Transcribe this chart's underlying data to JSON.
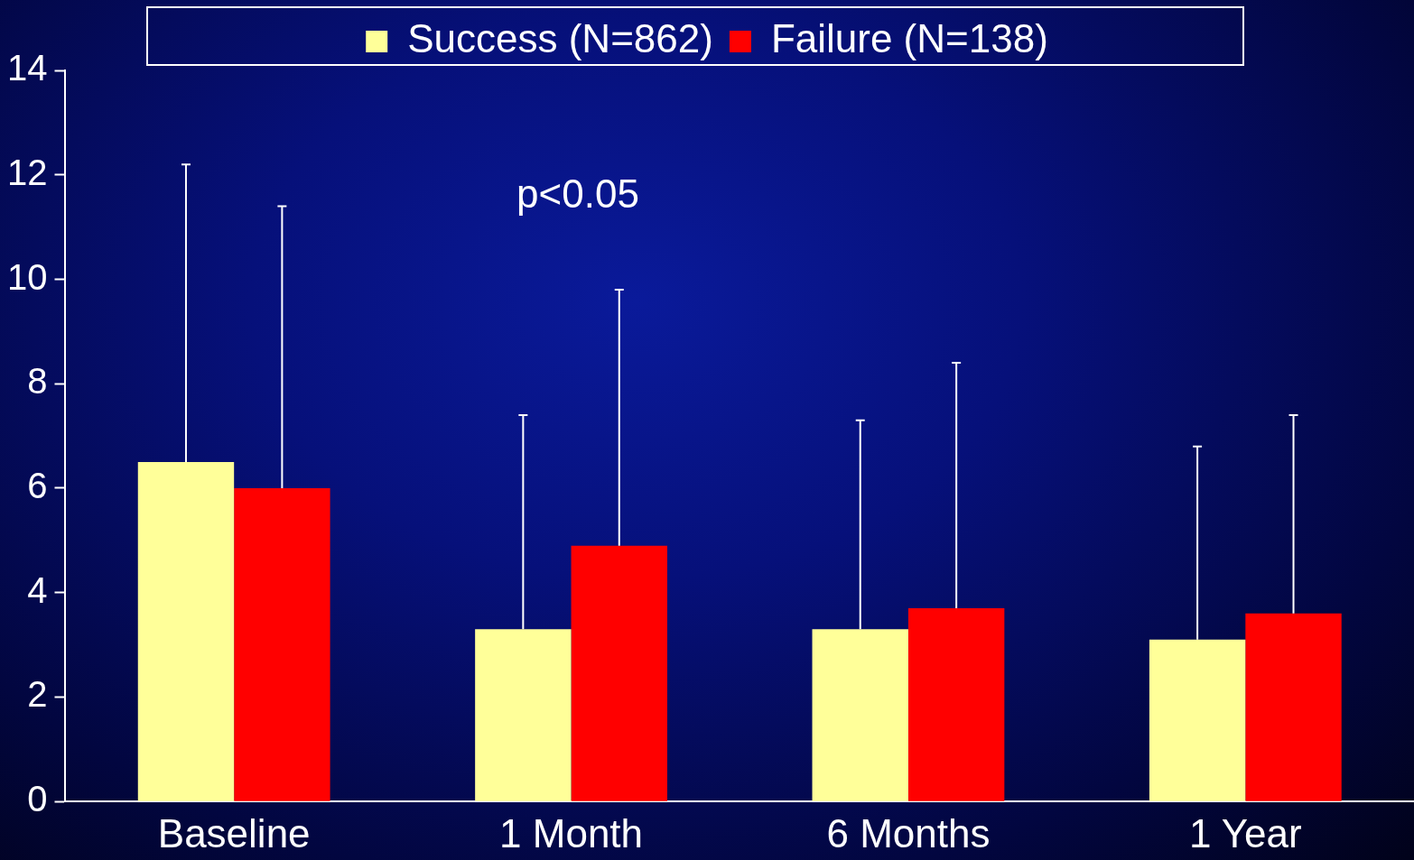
{
  "chart_data": {
    "type": "bar",
    "categories": [
      "Baseline",
      "1 Month",
      "6 Months",
      "1 Year"
    ],
    "series": [
      {
        "name": "Success (N=862)",
        "color": "#ffff99",
        "values": [
          6.5,
          3.3,
          3.3,
          3.1
        ],
        "errors": [
          [
            6.5,
            12.2
          ],
          [
            3.3,
            7.4
          ],
          [
            3.3,
            7.3
          ],
          [
            3.1,
            6.8
          ]
        ]
      },
      {
        "name": "Failure (N=138)",
        "color": "#ff0000",
        "values": [
          6.0,
          4.9,
          3.7,
          3.6
        ],
        "errors": [
          [
            6.0,
            11.4
          ],
          [
            4.9,
            9.8
          ],
          [
            3.7,
            8.4
          ],
          [
            3.6,
            7.4
          ]
        ]
      }
    ],
    "ylim": [
      0,
      14
    ],
    "yticks": [
      0,
      2,
      4,
      6,
      8,
      10,
      12,
      14
    ],
    "grid": false,
    "legend": "top",
    "annotations": [
      "p<0.05"
    ]
  }
}
